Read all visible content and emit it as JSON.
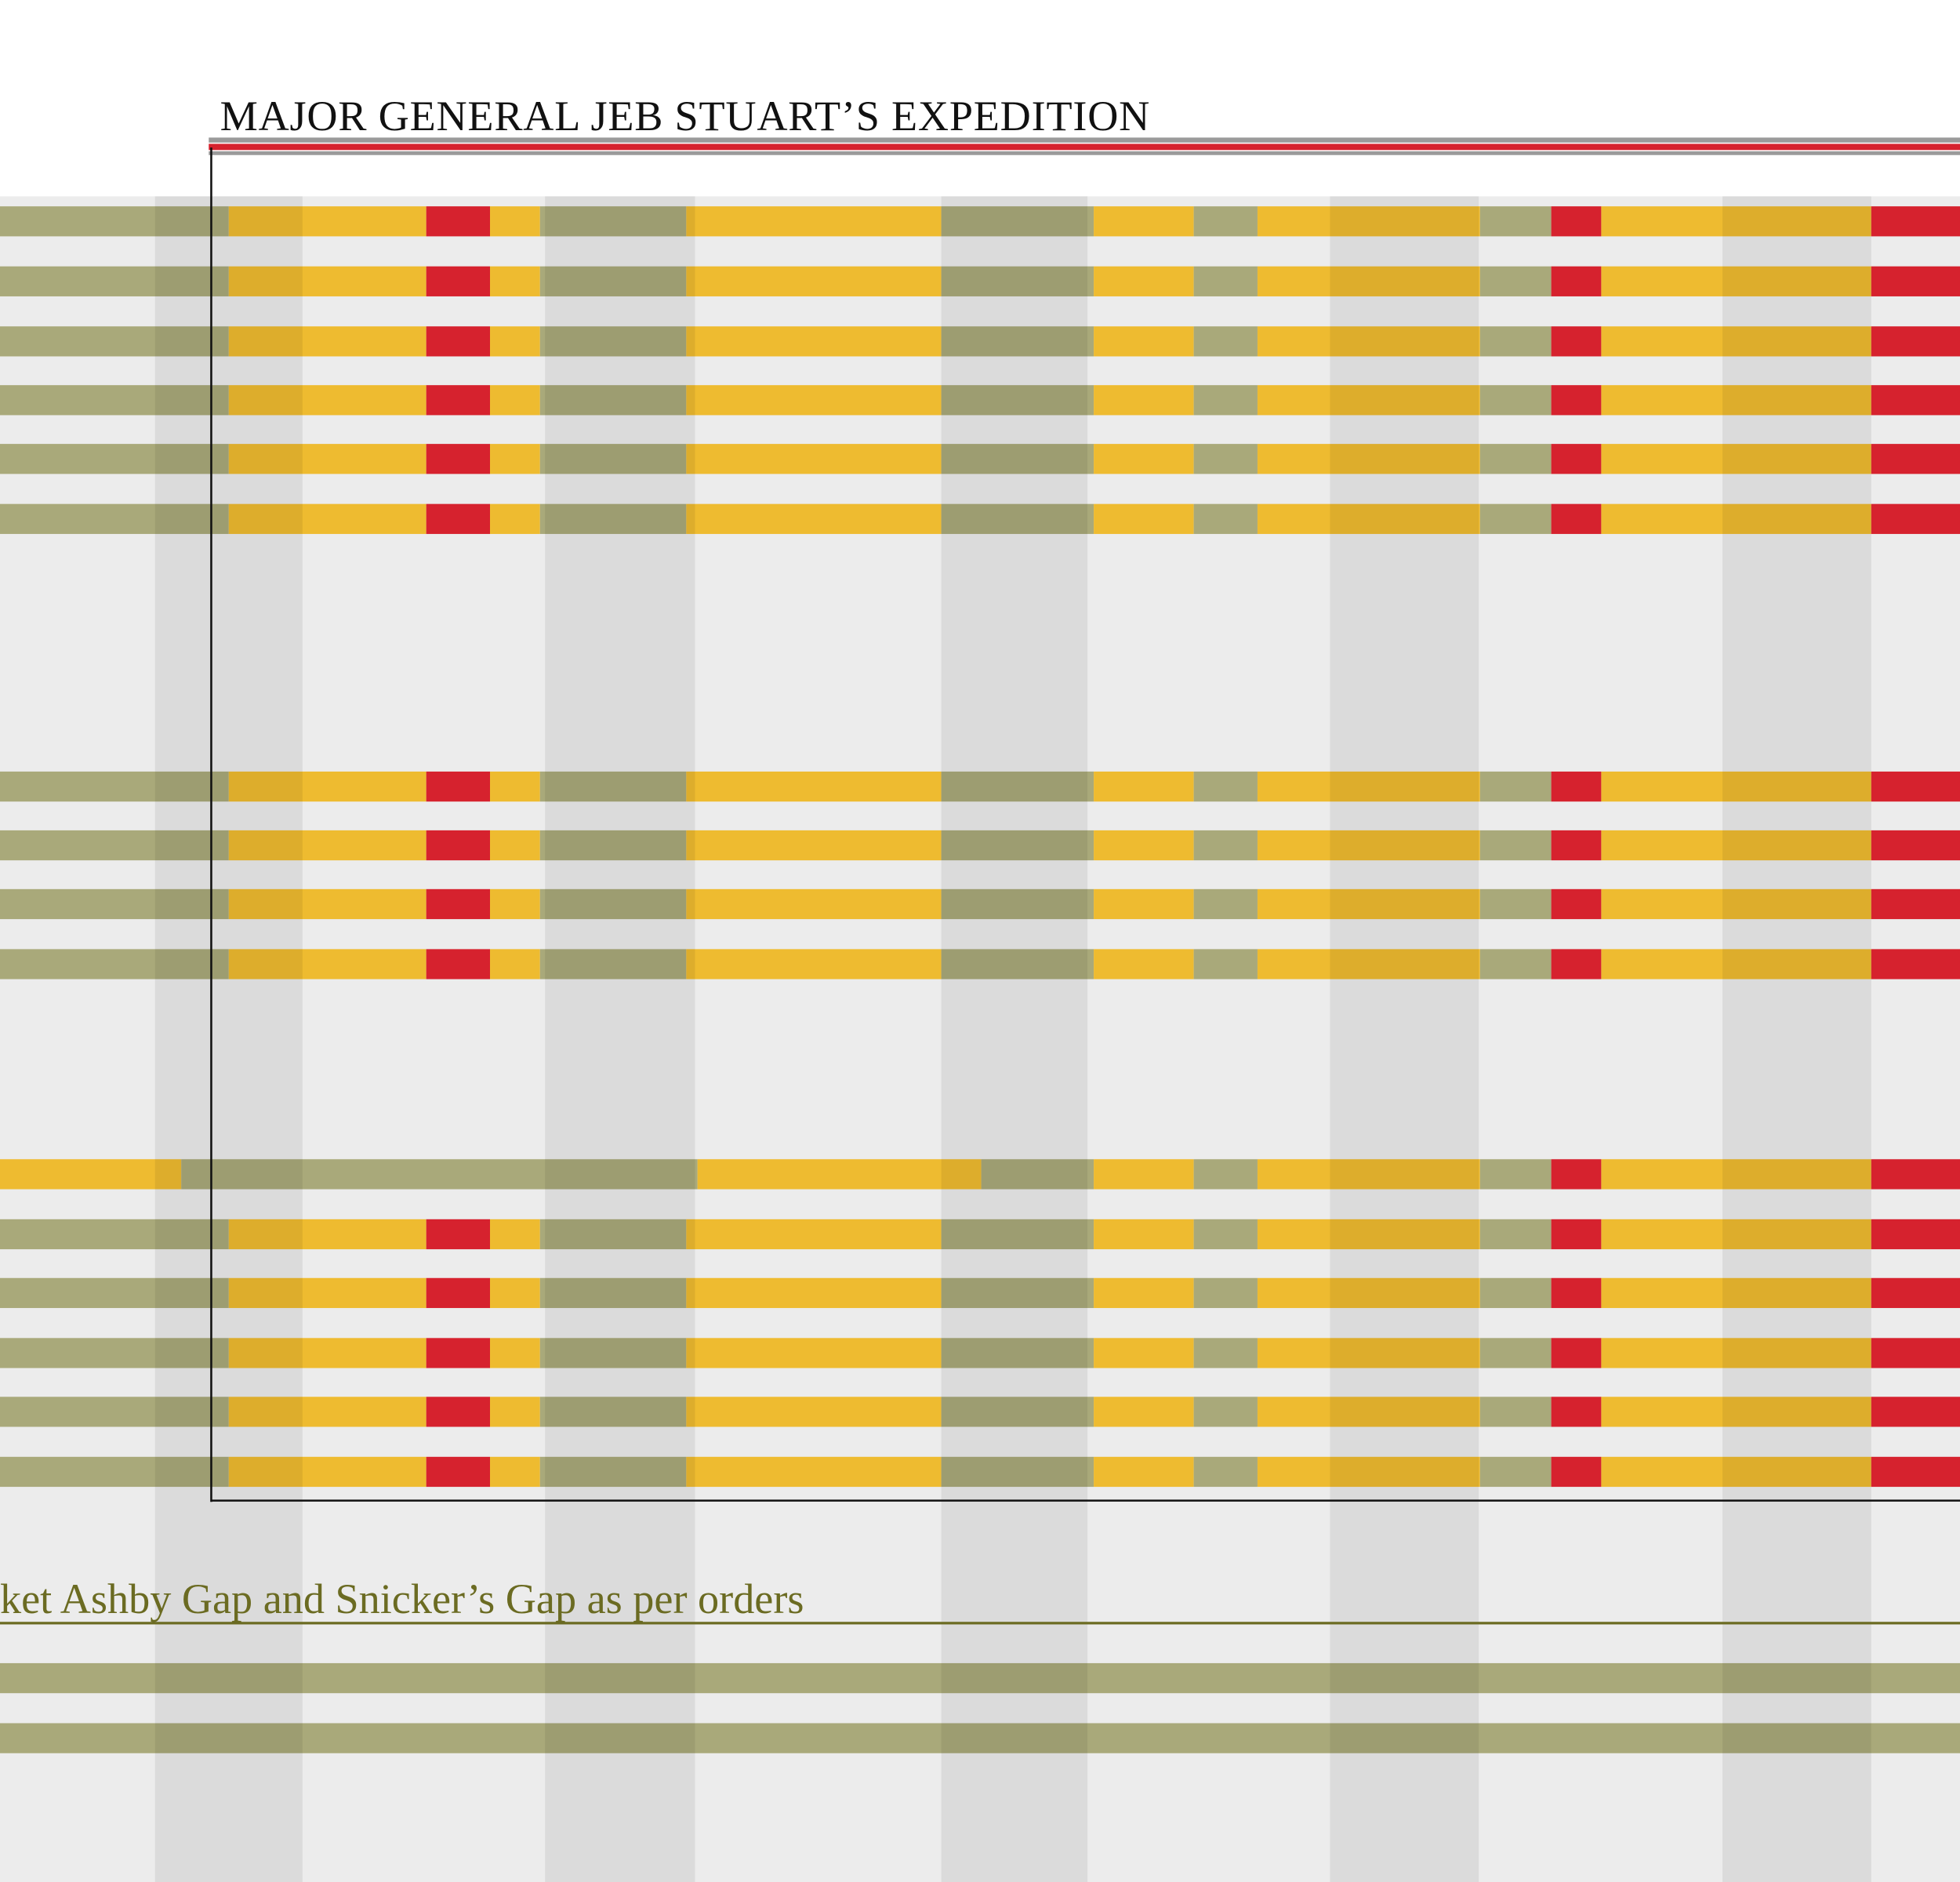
{
  "header": {
    "title": "MAJOR GENERAL JEB STUART’S EXPEDITION"
  },
  "caption": {
    "text": "ket Ashby Gap and Snicker’s Gap as per orders"
  }
}
